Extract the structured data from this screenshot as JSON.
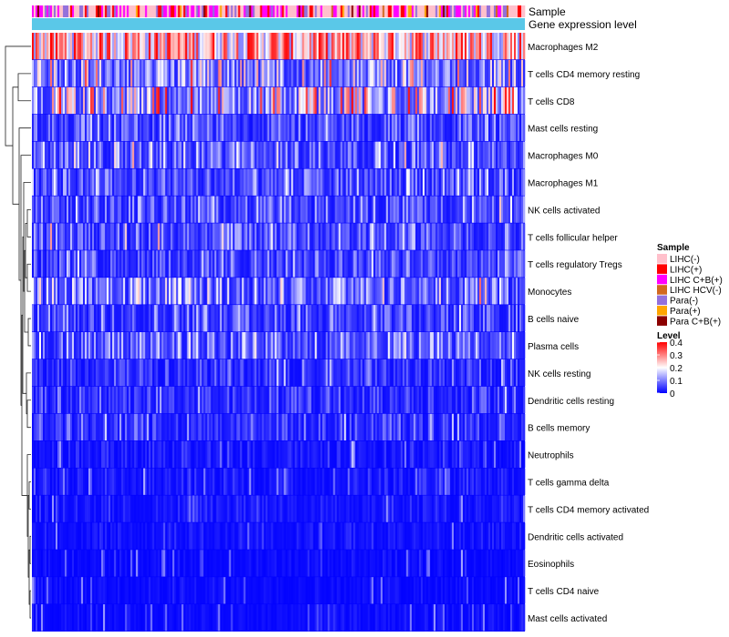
{
  "chart_data": {
    "type": "heatmap",
    "title": "",
    "annotation_tracks": [
      {
        "name": "Sample"
      },
      {
        "name": "Gene expression level"
      }
    ],
    "rows": [
      {
        "label": "Macrophages M2",
        "mean": 0.26
      },
      {
        "label": "T cells CD4 memory resting",
        "mean": 0.12
      },
      {
        "label": "T cells CD8",
        "mean": 0.15
      },
      {
        "label": "Mast cells resting",
        "mean": 0.06
      },
      {
        "label": "Macrophages M0",
        "mean": 0.08
      },
      {
        "label": "Macrophages M1",
        "mean": 0.07
      },
      {
        "label": "NK cells activated",
        "mean": 0.07
      },
      {
        "label": "T cells follicular helper",
        "mean": 0.07
      },
      {
        "label": "T cells regulatory  Tregs",
        "mean": 0.06
      },
      {
        "label": "Monocytes",
        "mean": 0.09
      },
      {
        "label": "B cells naive",
        "mean": 0.06
      },
      {
        "label": "Plasma cells",
        "mean": 0.08
      },
      {
        "label": "NK cells resting",
        "mean": 0.04
      },
      {
        "label": "Dendritic cells resting",
        "mean": 0.04
      },
      {
        "label": "B cells memory",
        "mean": 0.04
      },
      {
        "label": "Neutrophils",
        "mean": 0.02
      },
      {
        "label": "T cells gamma delta",
        "mean": 0.02
      },
      {
        "label": "T cells CD4 memory activated",
        "mean": 0.02
      },
      {
        "label": "Dendritic cells activated",
        "mean": 0.015
      },
      {
        "label": "Eosinophils",
        "mean": 0.01
      },
      {
        "label": "T cells CD4 naive",
        "mean": 0.01
      },
      {
        "label": "Mast cells activated",
        "mean": 0.01
      }
    ],
    "n_samples": 270,
    "sample_legend": {
      "title": "Sample",
      "items": [
        {
          "label": "LIHC(-)",
          "color": "#ffc0cb"
        },
        {
          "label": "LIHC(+)",
          "color": "#ff0000"
        },
        {
          "label": "LIHC C+B(+)",
          "color": "#ff00ff"
        },
        {
          "label": "LIHC HCV(-)",
          "color": "#d2691e"
        },
        {
          "label": "Para(-)",
          "color": "#9370db"
        },
        {
          "label": "Para(+)",
          "color": "#ffa500"
        },
        {
          "label": "Para C+B(+)",
          "color": "#8b0000"
        }
      ]
    },
    "level_legend": {
      "title": "Level",
      "min": 0,
      "max": 0.4,
      "ticks": [
        {
          "label": "0.4",
          "value": 0.4
        },
        {
          "label": "0.3",
          "value": 0.3
        },
        {
          "label": "0.2",
          "value": 0.2
        },
        {
          "label": "0.1",
          "value": 0.1
        },
        {
          "label": "0",
          "value": 0
        }
      ],
      "colors": {
        "low": "#0000ff",
        "mid": "#ffffff",
        "high": "#ff0000",
        "mid_value": 0.2
      }
    },
    "expression_track_color": "#5ac8e8"
  }
}
